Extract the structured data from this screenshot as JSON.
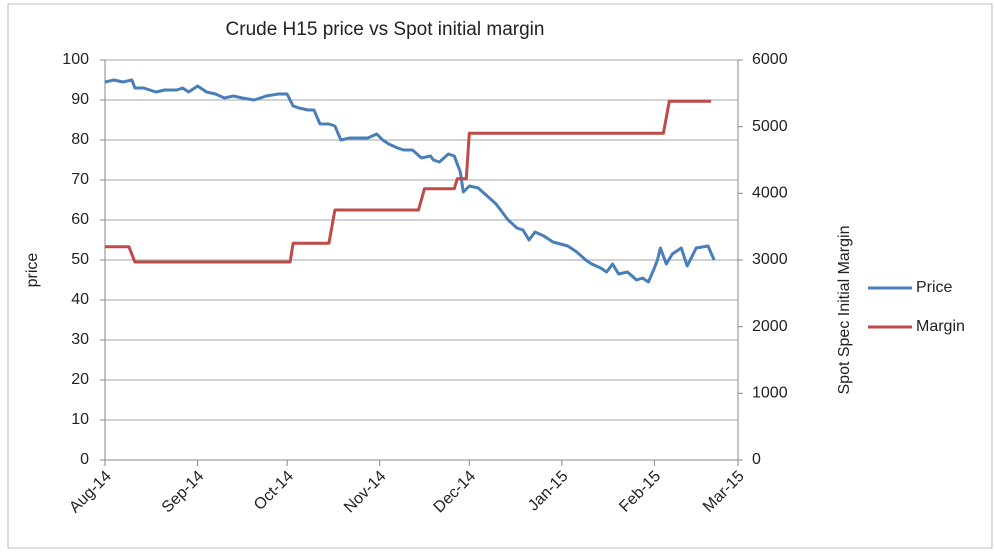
{
  "chart_data": {
    "type": "line",
    "title": "Crude H15 price vs Spot initial margin",
    "ylabel": "price",
    "y2label": "Spot Spec Initial Margin",
    "xlim": [
      0,
      212
    ],
    "xticks": [
      {
        "value": 0,
        "label": "Aug-14"
      },
      {
        "value": 31,
        "label": "Sep-14"
      },
      {
        "value": 61,
        "label": "Oct-14"
      },
      {
        "value": 92,
        "label": "Nov-14"
      },
      {
        "value": 122,
        "label": "Dec-14"
      },
      {
        "value": 153,
        "label": "Jan-15"
      },
      {
        "value": 184,
        "label": "Feb-15"
      },
      {
        "value": 212,
        "label": "Mar-15"
      }
    ],
    "ylim": [
      0,
      100
    ],
    "yticks": [
      0,
      10,
      20,
      30,
      40,
      50,
      60,
      70,
      80,
      90,
      100
    ],
    "y2lim": [
      0,
      6000
    ],
    "y2ticks": [
      0,
      1000,
      2000,
      3000,
      4000,
      5000,
      6000
    ],
    "grid": true,
    "legend": "right",
    "series": [
      {
        "name": "Price",
        "color": "#4a7ebb",
        "axis": "y",
        "x": [
          0,
          3,
          6,
          9,
          10,
          13,
          17,
          20,
          24,
          26,
          28,
          31,
          34,
          37,
          40,
          43,
          46,
          50,
          54,
          58,
          61,
          63,
          65,
          68,
          70,
          72,
          75,
          77,
          79,
          82,
          85,
          88,
          91,
          93,
          95,
          98,
          100,
          103,
          106,
          109,
          110,
          112,
          115,
          117,
          119,
          120,
          122,
          125,
          128,
          131,
          135,
          138,
          140,
          142,
          144,
          147,
          150,
          155,
          158,
          161,
          163,
          166,
          168,
          170,
          172,
          175,
          178,
          180,
          182,
          184,
          185,
          186,
          188,
          190,
          193,
          195,
          198,
          202,
          204
        ],
        "values": [
          94.5,
          95,
          94.5,
          95,
          93,
          93,
          92,
          92.5,
          92.5,
          93,
          92,
          93.5,
          92,
          91.5,
          90.5,
          91,
          90.5,
          90,
          91,
          91.5,
          91.5,
          88.5,
          88,
          87.5,
          87.5,
          84,
          84,
          83.5,
          80,
          80.5,
          80.5,
          80.5,
          81.5,
          80,
          79,
          78,
          77.5,
          77.5,
          75.5,
          76,
          75,
          74.5,
          76.5,
          76,
          72,
          67,
          68.5,
          68,
          66,
          64,
          60,
          58,
          57.5,
          55,
          57,
          56,
          54.5,
          53.5,
          52,
          50,
          49,
          48,
          47,
          49,
          46.5,
          47,
          45,
          45.5,
          44.5,
          48,
          50,
          53,
          49,
          51.5,
          53,
          48.5,
          53,
          53.5,
          50
        ]
      },
      {
        "name": "Margin",
        "color": "#be4b48",
        "axis": "y2",
        "x": [
          0,
          8,
          10,
          62,
          63,
          75,
          77,
          105,
          107,
          117,
          118,
          121,
          122,
          187,
          189,
          203
        ],
        "values": [
          3200,
          3200,
          2970,
          2970,
          3250,
          3250,
          3750,
          3750,
          4070,
          4070,
          4220,
          4220,
          4900,
          4900,
          5380,
          5380
        ]
      }
    ]
  }
}
